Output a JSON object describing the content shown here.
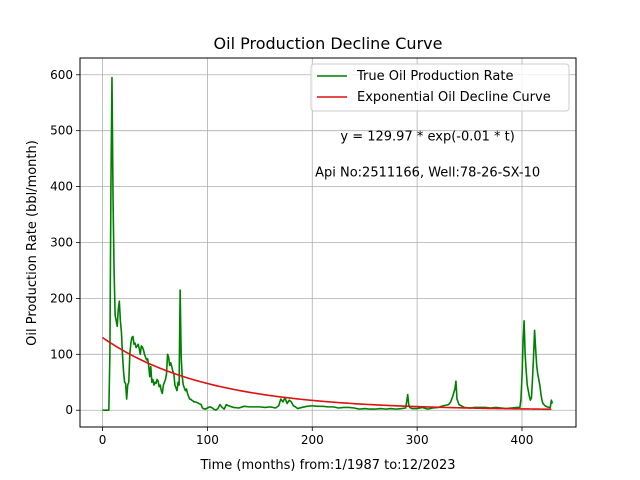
{
  "chart_data": {
    "type": "line",
    "title": "Oil Production Decline Curve",
    "xlabel": "Time (months) from:1/1987 to:12/2023",
    "ylabel": "Oil Production Rate (bbl/month)",
    "xlim": [
      -21.5,
      451.5
    ],
    "ylim": [
      -30,
      630
    ],
    "xticks": [
      0,
      100,
      200,
      300,
      400
    ],
    "yticks": [
      0,
      100,
      200,
      300,
      400,
      500,
      600
    ],
    "grid": true,
    "legend_position": "top-right",
    "annotations": [
      {
        "text": "y = 129.97 * exp(-0.01 * t)",
        "x": 310,
        "y": 490
      },
      {
        "text": "Api No:2511166, Well:78-26-SX-10",
        "x": 310,
        "y": 425
      }
    ],
    "series": [
      {
        "name": "True Oil Production Rate",
        "color": "#008000",
        "points": [
          [
            0,
            0
          ],
          [
            6,
            0
          ],
          [
            7,
            100
          ],
          [
            8,
            400
          ],
          [
            9,
            595
          ],
          [
            10,
            380
          ],
          [
            11,
            250
          ],
          [
            12,
            170
          ],
          [
            13,
            160
          ],
          [
            14,
            150
          ],
          [
            15,
            180
          ],
          [
            16,
            195
          ],
          [
            17,
            160
          ],
          [
            18,
            140
          ],
          [
            19,
            100
          ],
          [
            20,
            70
          ],
          [
            21,
            50
          ],
          [
            22,
            48
          ],
          [
            23,
            20
          ],
          [
            24,
            45
          ],
          [
            25,
            50
          ],
          [
            26,
            100
          ],
          [
            27,
            120
          ],
          [
            28,
            130
          ],
          [
            29,
            132
          ],
          [
            30,
            118
          ],
          [
            31,
            120
          ],
          [
            32,
            112
          ],
          [
            33,
            115
          ],
          [
            34,
            118
          ],
          [
            35,
            110
          ],
          [
            36,
            100
          ],
          [
            37,
            115
          ],
          [
            38,
            113
          ],
          [
            39,
            108
          ],
          [
            40,
            100
          ],
          [
            41,
            95
          ],
          [
            42,
            90
          ],
          [
            43,
            92
          ],
          [
            44,
            80
          ],
          [
            45,
            60
          ],
          [
            46,
            78
          ],
          [
            47,
            50
          ],
          [
            48,
            55
          ],
          [
            49,
            45
          ],
          [
            50,
            50
          ],
          [
            51,
            48
          ],
          [
            52,
            55
          ],
          [
            53,
            52
          ],
          [
            54,
            42
          ],
          [
            55,
            45
          ],
          [
            56,
            35
          ],
          [
            57,
            30
          ],
          [
            58,
            45
          ],
          [
            59,
            50
          ],
          [
            60,
            55
          ],
          [
            61,
            65
          ],
          [
            62,
            100
          ],
          [
            63,
            95
          ],
          [
            64,
            80
          ],
          [
            65,
            85
          ],
          [
            66,
            78
          ],
          [
            67,
            70
          ],
          [
            68,
            65
          ],
          [
            69,
            45
          ],
          [
            70,
            40
          ],
          [
            71,
            35
          ],
          [
            72,
            50
          ],
          [
            73,
            45
          ],
          [
            74,
            215
          ],
          [
            75,
            95
          ],
          [
            76,
            60
          ],
          [
            77,
            45
          ],
          [
            78,
            40
          ],
          [
            79,
            35
          ],
          [
            80,
            38
          ],
          [
            81,
            30
          ],
          [
            82,
            25
          ],
          [
            83,
            20
          ],
          [
            84,
            20
          ],
          [
            85,
            18
          ],
          [
            86,
            17
          ],
          [
            87,
            15
          ],
          [
            88,
            15
          ],
          [
            90,
            14
          ],
          [
            92,
            12
          ],
          [
            94,
            10
          ],
          [
            95,
            5
          ],
          [
            96,
            3
          ],
          [
            98,
            2
          ],
          [
            100,
            4
          ],
          [
            102,
            6
          ],
          [
            104,
            5
          ],
          [
            106,
            2
          ],
          [
            108,
            0
          ],
          [
            110,
            3
          ],
          [
            112,
            10
          ],
          [
            114,
            5
          ],
          [
            116,
            2
          ],
          [
            118,
            10
          ],
          [
            120,
            8
          ],
          [
            125,
            5
          ],
          [
            130,
            4
          ],
          [
            135,
            7
          ],
          [
            140,
            6
          ],
          [
            145,
            6
          ],
          [
            150,
            6
          ],
          [
            155,
            5
          ],
          [
            160,
            6
          ],
          [
            165,
            4
          ],
          [
            168,
            8
          ],
          [
            170,
            20
          ],
          [
            172,
            15
          ],
          [
            174,
            22
          ],
          [
            176,
            12
          ],
          [
            178,
            18
          ],
          [
            180,
            15
          ],
          [
            182,
            8
          ],
          [
            184,
            6
          ],
          [
            186,
            3
          ],
          [
            190,
            5
          ],
          [
            195,
            7
          ],
          [
            200,
            8
          ],
          [
            205,
            7
          ],
          [
            210,
            7
          ],
          [
            215,
            6
          ],
          [
            220,
            6
          ],
          [
            225,
            4
          ],
          [
            230,
            5
          ],
          [
            235,
            5
          ],
          [
            240,
            4
          ],
          [
            245,
            2
          ],
          [
            250,
            3
          ],
          [
            255,
            2
          ],
          [
            260,
            2
          ],
          [
            265,
            3
          ],
          [
            270,
            2
          ],
          [
            275,
            3
          ],
          [
            280,
            2
          ],
          [
            285,
            3
          ],
          [
            289,
            4
          ],
          [
            290,
            15
          ],
          [
            291,
            28
          ],
          [
            292,
            10
          ],
          [
            293,
            5
          ],
          [
            295,
            3
          ],
          [
            300,
            3
          ],
          [
            305,
            5
          ],
          [
            310,
            2
          ],
          [
            315,
            4
          ],
          [
            320,
            5
          ],
          [
            325,
            8
          ],
          [
            330,
            10
          ],
          [
            332,
            15
          ],
          [
            334,
            25
          ],
          [
            336,
            38
          ],
          [
            337,
            52
          ],
          [
            338,
            20
          ],
          [
            340,
            10
          ],
          [
            345,
            5
          ],
          [
            350,
            4
          ],
          [
            355,
            5
          ],
          [
            360,
            5
          ],
          [
            365,
            5
          ],
          [
            370,
            4
          ],
          [
            375,
            5
          ],
          [
            380,
            4
          ],
          [
            385,
            3
          ],
          [
            390,
            4
          ],
          [
            395,
            5
          ],
          [
            398,
            5
          ],
          [
            399,
            20
          ],
          [
            400,
            60
          ],
          [
            401,
            120
          ],
          [
            402,
            160
          ],
          [
            403,
            100
          ],
          [
            404,
            70
          ],
          [
            405,
            45
          ],
          [
            406,
            35
          ],
          [
            407,
            25
          ],
          [
            408,
            18
          ],
          [
            409,
            22
          ],
          [
            410,
            55
          ],
          [
            411,
            95
          ],
          [
            412,
            143
          ],
          [
            413,
            110
          ],
          [
            414,
            80
          ],
          [
            415,
            65
          ],
          [
            416,
            55
          ],
          [
            417,
            45
          ],
          [
            418,
            30
          ],
          [
            419,
            18
          ],
          [
            420,
            12
          ],
          [
            422,
            8
          ],
          [
            424,
            6
          ],
          [
            426,
            5
          ],
          [
            427,
            5
          ],
          [
            428,
            18
          ],
          [
            429,
            12
          ]
        ]
      },
      {
        "name": "Exponential Oil Decline Curve",
        "color": "#dd1111",
        "model": {
          "a": 129.97,
          "b": 0.01,
          "t_start": 0,
          "t_end": 429
        }
      }
    ]
  }
}
